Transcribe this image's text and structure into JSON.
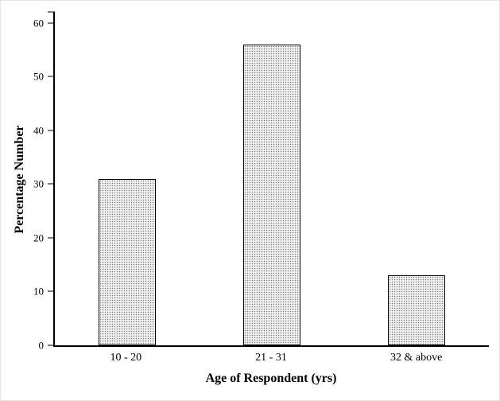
{
  "chart_data": {
    "type": "bar",
    "title": "",
    "categories": [
      "10 - 20",
      "21 - 31",
      "32 & above"
    ],
    "values": [
      31,
      56,
      13
    ],
    "xlabel": "Age of Respondent (yrs)",
    "ylabel": "Percentage Number",
    "ylim": [
      0,
      62
    ],
    "yticks": [
      0,
      10,
      20,
      30,
      40,
      50,
      60
    ],
    "grid": false,
    "legend": false,
    "bar_fill": "#f2f2f2",
    "bar_pattern": "stipple-dots",
    "bar_dot_color": "#7d7d7d",
    "bar_border_color": "#000000",
    "axis_color": "#000000",
    "background_color": "#ffffff"
  }
}
